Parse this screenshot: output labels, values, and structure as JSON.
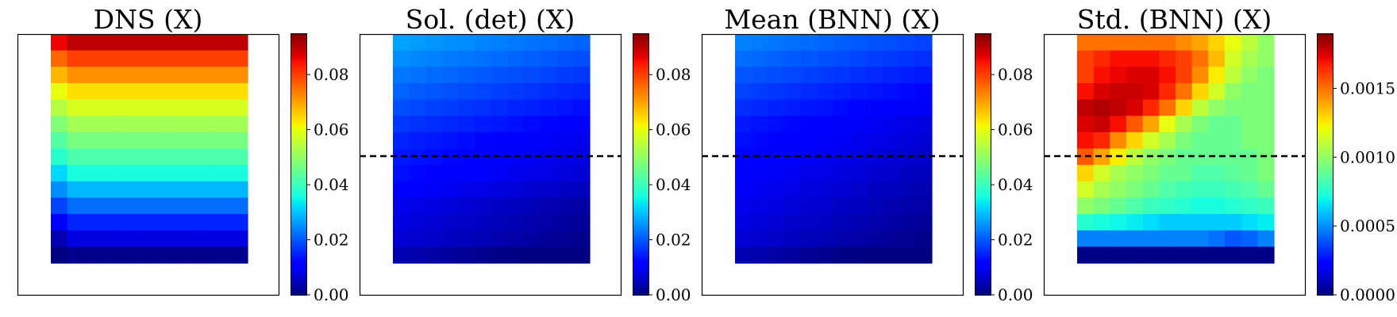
{
  "chart_data": [
    {
      "type": "heatmap",
      "title": "DNS (X)",
      "grid_rows": 14,
      "grid_cols": 12,
      "rows_top_to_bottom": [
        0.09,
        0.08,
        0.072,
        0.064,
        0.058,
        0.052,
        0.047,
        0.042,
        0.036,
        0.029,
        0.022,
        0.015,
        0.008,
        0.001
      ],
      "row_left_edge_offset": -0.004,
      "colorbar": {
        "min": 0.0,
        "max": 0.095,
        "ticks": [
          0.0,
          0.02,
          0.04,
          0.06,
          0.08
        ],
        "tick_labels": [
          "0.00",
          "0.02",
          "0.04",
          "0.06",
          "0.08"
        ]
      },
      "dashed_line": false
    },
    {
      "type": "heatmap",
      "title": "Sol. (det) (X)",
      "grid_rows": 14,
      "grid_cols": 12,
      "rows_top_to_bottom": [
        0.024,
        0.022,
        0.02,
        0.018,
        0.016,
        0.014,
        0.012,
        0.011,
        0.01,
        0.008,
        0.006,
        0.005,
        0.004,
        0.001
      ],
      "col_gradient": 0.006,
      "colorbar": {
        "min": 0.0,
        "max": 0.095,
        "ticks": [
          0.0,
          0.02,
          0.04,
          0.06,
          0.08
        ],
        "tick_labels": [
          "0.00",
          "0.02",
          "0.04",
          "0.06",
          "0.08"
        ]
      },
      "dashed_line": true
    },
    {
      "type": "heatmap",
      "title": "Mean (BNN) (X)",
      "grid_rows": 14,
      "grid_cols": 12,
      "rows_top_to_bottom": [
        0.021,
        0.019,
        0.017,
        0.015,
        0.013,
        0.011,
        0.01,
        0.009,
        0.008,
        0.007,
        0.006,
        0.005,
        0.004,
        0.001
      ],
      "col_gradient": 0.006,
      "colorbar": {
        "min": 0.0,
        "max": 0.095,
        "ticks": [
          0.0,
          0.02,
          0.04,
          0.06,
          0.08
        ],
        "tick_labels": [
          "0.00",
          "0.02",
          "0.04",
          "0.06",
          "0.08"
        ]
      },
      "dashed_line": true
    },
    {
      "type": "heatmap",
      "title": "Std. (BNN) (X)",
      "grid_rows": 14,
      "grid_cols": 12,
      "grid_values": [
        [
          0.0015,
          0.0015,
          0.0015,
          0.0015,
          0.0015,
          0.0015,
          0.00145,
          0.0014,
          0.0013,
          0.0012,
          0.0011,
          0.001
        ],
        [
          0.0016,
          0.00165,
          0.0017,
          0.0017,
          0.0017,
          0.00165,
          0.0016,
          0.0015,
          0.00135,
          0.00115,
          0.00105,
          0.001
        ],
        [
          0.0016,
          0.0017,
          0.00172,
          0.00175,
          0.00175,
          0.0017,
          0.0016,
          0.00145,
          0.00125,
          0.0011,
          0.001,
          0.00095
        ],
        [
          0.0017,
          0.00175,
          0.00178,
          0.00178,
          0.00175,
          0.00165,
          0.0015,
          0.0013,
          0.00115,
          0.001,
          0.00095,
          0.00095
        ],
        [
          0.0018,
          0.00182,
          0.0018,
          0.00175,
          0.00165,
          0.0015,
          0.0013,
          0.0011,
          0.001,
          0.00095,
          0.00095,
          0.00095
        ],
        [
          0.00175,
          0.00178,
          0.0017,
          0.00155,
          0.0014,
          0.0012,
          0.00105,
          0.00095,
          0.0009,
          0.0009,
          0.00095,
          0.00095
        ],
        [
          0.0017,
          0.00165,
          0.00145,
          0.0013,
          0.00115,
          0.00105,
          0.00095,
          0.0009,
          0.0009,
          0.0009,
          0.00095,
          0.00095
        ],
        [
          0.00155,
          0.0014,
          0.00125,
          0.0011,
          0.001,
          0.00095,
          0.0009,
          0.0009,
          0.0009,
          0.0009,
          0.0009,
          0.00095
        ],
        [
          0.0013,
          0.00115,
          0.00105,
          0.001,
          0.00095,
          0.0009,
          0.0009,
          0.00085,
          0.00085,
          0.00088,
          0.0009,
          0.00095
        ],
        [
          0.00115,
          0.00105,
          0.001,
          0.00095,
          0.0009,
          0.00085,
          0.00082,
          0.0008,
          0.0008,
          0.00082,
          0.00085,
          0.0009
        ],
        [
          0.001,
          0.00095,
          0.0009,
          0.00085,
          0.0008,
          0.00078,
          0.00075,
          0.00072,
          0.00072,
          0.00075,
          0.00078,
          0.0008
        ],
        [
          0.00075,
          0.00072,
          0.0007,
          0.00068,
          0.00065,
          0.00062,
          0.00062,
          0.00062,
          0.00062,
          0.00062,
          0.00065,
          0.00068
        ],
        [
          0.00048,
          0.00048,
          0.00048,
          0.00048,
          0.00048,
          0.00048,
          0.00048,
          0.00048,
          0.00045,
          0.0004,
          0.00042,
          0.00048
        ],
        [
          1e-05,
          1e-05,
          1e-05,
          1e-05,
          1e-05,
          1e-05,
          1e-05,
          1e-05,
          1e-05,
          1e-05,
          1e-05,
          1e-05
        ]
      ],
      "colorbar": {
        "min": 0.0,
        "max": 0.0019,
        "ticks": [
          0.0,
          0.0005,
          0.001,
          0.0015
        ],
        "tick_labels": [
          "0.0000",
          "0.0005",
          "0.0010",
          "0.0015"
        ]
      },
      "dashed_line": true
    }
  ],
  "colormap": "jet",
  "colors": {
    "dashed_line": "#000000",
    "frame": "#000000",
    "background": "#ffffff"
  }
}
